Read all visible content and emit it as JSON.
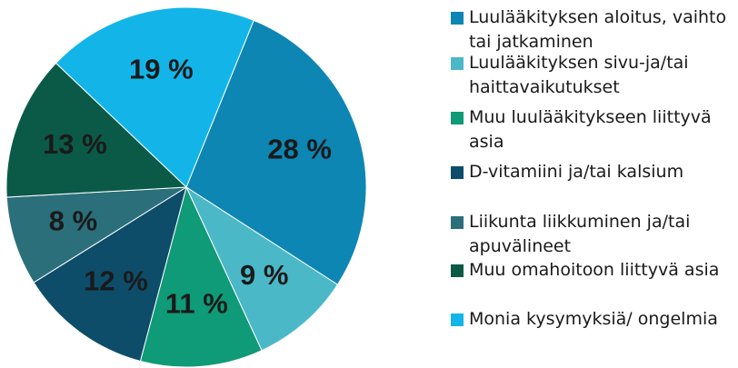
{
  "chart_data": {
    "type": "pie",
    "categories": [
      "Luulääkityksen aloitus, vaihto tai jatkaminen",
      "Luulääkityksen sivu-ja/tai haittavaikutukset",
      "Muu luulääkitykseen liittyvä asia",
      "D-vitamiini ja/tai kalsium",
      "Liikunta liikkuminen ja/tai apuvälineet",
      "Muu omahoitoon liittyvä asia",
      "Monia kysymyksiä/ ongelmia"
    ],
    "values": [
      28,
      9,
      11,
      12,
      8,
      13,
      19
    ],
    "value_labels": [
      "28 %",
      "9 %",
      "11 %",
      "12 %",
      "8 %",
      "13 %",
      "19 %"
    ],
    "colors": [
      "#0e86b4",
      "#4bb8c8",
      "#0f9a78",
      "#0d4d6a",
      "#2b6f7a",
      "#0b5a48",
      "#13b5e8"
    ],
    "legend": "right"
  }
}
